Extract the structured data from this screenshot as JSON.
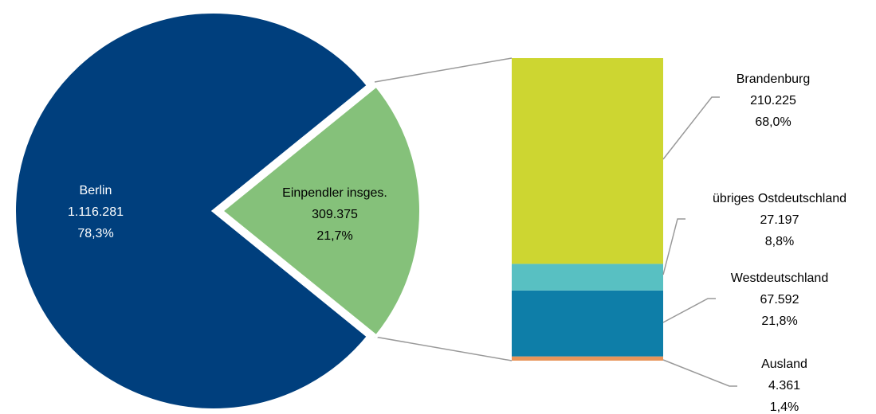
{
  "chart_data": [
    {
      "type": "pie",
      "categories": [
        "Berlin",
        "Einpendler insges."
      ],
      "values": [
        1116281,
        309375
      ],
      "value_labels": [
        "1.116.281",
        "309.375"
      ],
      "percentages": [
        78.3,
        21.7
      ],
      "percentage_labels": [
        "78,3%",
        "21,7%"
      ],
      "colors": [
        "#003f7d",
        "#85c17a"
      ]
    },
    {
      "type": "stacked-bar",
      "categories": [
        "Brandenburg",
        "übriges Ostdeutschland",
        "Westdeutschland",
        "Ausland"
      ],
      "values": [
        210225,
        27197,
        67592,
        4361
      ],
      "value_labels": [
        "210.225",
        "27.197",
        "67.592",
        "4.361"
      ],
      "percentages": [
        68.0,
        8.8,
        21.8,
        1.4
      ],
      "percentage_labels": [
        "68,0%",
        "8,8%",
        "21,8%",
        "1,4%"
      ],
      "colors": [
        "#cdd631",
        "#58c0c2",
        "#0e7ea8",
        "#e8955a"
      ]
    }
  ]
}
